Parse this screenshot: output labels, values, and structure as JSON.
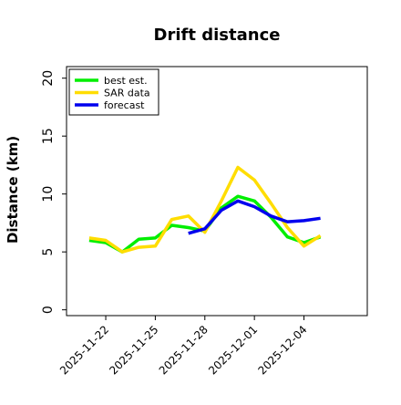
{
  "chart_data": {
    "type": "line",
    "title": "Drift distance",
    "xlabel": "",
    "ylabel": "Distance (km)",
    "ylim": [
      -0.5,
      21
    ],
    "xlim": [
      "2025-11-19T15:00",
      "2025-12-07T20:00"
    ],
    "x_ticks": [
      "2025-11-22",
      "2025-11-25",
      "2025-11-28",
      "2025-12-01",
      "2025-12-04"
    ],
    "y_ticks": [
      0,
      5,
      10,
      15,
      20
    ],
    "grid": false,
    "legend_position": "top-left",
    "series": [
      {
        "name": "best est.",
        "color": "#00ee00",
        "x": [
          "2025-11-21T00:00",
          "2025-11-22T00:00",
          "2025-11-23T00:00",
          "2025-11-24T00:00",
          "2025-11-25T00:00",
          "2025-11-26T00:00",
          "2025-11-27T00:00",
          "2025-11-28T00:00",
          "2025-11-29T00:00",
          "2025-11-30T00:00",
          "2025-12-01T00:00",
          "2025-12-02T00:00",
          "2025-12-03T00:00",
          "2025-12-04T00:00",
          "2025-12-05T00:00"
        ],
        "y": [
          6.0,
          5.8,
          5.0,
          6.1,
          6.2,
          7.3,
          7.1,
          6.8,
          8.8,
          9.8,
          9.4,
          8.0,
          6.3,
          5.8,
          6.3
        ]
      },
      {
        "name": "SAR data",
        "color": "#ffdd00",
        "x": [
          "2025-11-21T00:00",
          "2025-11-22T00:00",
          "2025-11-23T00:00",
          "2025-11-24T00:00",
          "2025-11-25T00:00",
          "2025-11-26T00:00",
          "2025-11-27T00:00",
          "2025-11-28T00:00",
          "2025-11-29T00:00",
          "2025-11-30T00:00",
          "2025-12-01T00:00",
          "2025-12-02T00:00",
          "2025-12-03T00:00",
          "2025-12-04T00:00",
          "2025-12-05T00:00"
        ],
        "y": [
          6.2,
          6.0,
          5.0,
          5.4,
          5.5,
          7.8,
          8.1,
          6.7,
          9.4,
          12.3,
          11.2,
          9.2,
          7.1,
          5.5,
          6.4
        ]
      },
      {
        "name": "forecast",
        "color": "#0000ee",
        "x": [
          "2025-11-27T00:00",
          "2025-11-28T00:00",
          "2025-11-29T00:00",
          "2025-11-30T00:00",
          "2025-12-01T00:00",
          "2025-12-02T00:00",
          "2025-12-03T00:00",
          "2025-12-04T00:00",
          "2025-12-05T00:00"
        ],
        "y": [
          6.6,
          7.0,
          8.6,
          9.4,
          8.9,
          8.1,
          7.6,
          7.7,
          7.9
        ]
      }
    ]
  }
}
